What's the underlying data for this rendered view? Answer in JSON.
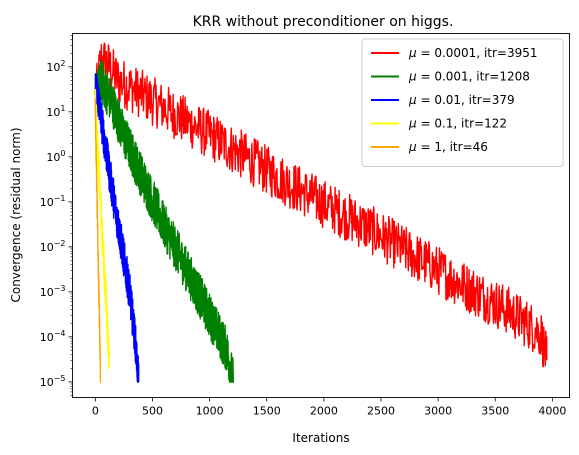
{
  "chart_data": {
    "type": "line",
    "title": "KRR without preconditioner on higgs.",
    "xlabel": "Iterations",
    "ylabel": "Convergence (residual norm)",
    "xlim": [
      -200,
      4150
    ],
    "ylim": [
      4.5e-06,
      550
    ],
    "yscale": "log",
    "grid": false,
    "legend_position": "top-right",
    "x_ticks": [
      0,
      500,
      1000,
      1500,
      2000,
      2500,
      3000,
      3500,
      4000
    ],
    "x_tick_labels": [
      "0",
      "500",
      "1000",
      "1500",
      "2000",
      "2500",
      "3000",
      "3500",
      "4000"
    ],
    "y_ticks": [
      1e-05,
      0.0001,
      0.001,
      0.01,
      0.1,
      1,
      10,
      100
    ],
    "y_tick_labels": [
      {
        "base": "10",
        "exp": "−5"
      },
      {
        "base": "10",
        "exp": "−4"
      },
      {
        "base": "10",
        "exp": "−3"
      },
      {
        "base": "10",
        "exp": "−2"
      },
      {
        "base": "10",
        "exp": "−1"
      },
      {
        "base": "10",
        "exp": "0"
      },
      {
        "base": "10",
        "exp": "1"
      },
      {
        "base": "10",
        "exp": "2"
      }
    ],
    "series": [
      {
        "name": "μ = 0.0001, itr=3951",
        "legend_mu": "μ",
        "legend_text": " = 0.0001, itr=3951",
        "color": "#ff0000",
        "x": [
          0,
          50,
          100,
          200,
          400,
          800,
          1200,
          1600,
          2000,
          2400,
          2800,
          3200,
          3600,
          3900,
          3951
        ],
        "y": [
          20,
          150,
          120,
          50,
          25,
          6,
          1.5,
          0.35,
          0.09,
          0.025,
          0.006,
          0.0015,
          0.0004,
          0.00012,
          3e-05
        ],
        "noise": 0.55
      },
      {
        "name": "μ = 0.001, itr=1208",
        "legend_mu": "μ",
        "legend_text": " = 0.001, itr=1208",
        "color": "#008000",
        "x": [
          0,
          50,
          150,
          250,
          400,
          600,
          800,
          1000,
          1150,
          1208
        ],
        "y": [
          20,
          50,
          15,
          3,
          0.4,
          0.03,
          0.003,
          0.0003,
          5e-05,
          1e-05
        ],
        "noise": 0.5
      },
      {
        "name": "μ = 0.01, itr=379",
        "legend_mu": "μ",
        "legend_text": " = 0.01, itr=379",
        "color": "#0000ff",
        "x": [
          0,
          20,
          60,
          120,
          200,
          300,
          350,
          379
        ],
        "y": [
          30,
          25,
          5,
          0.5,
          0.03,
          0.001,
          8e-05,
          1e-05
        ],
        "noise": 0.45
      },
      {
        "name": "μ = 0.1, itr=122",
        "legend_mu": "μ",
        "legend_text": " = 0.1, itr=122",
        "color": "#ffff00",
        "x": [
          0,
          10,
          30,
          60,
          90,
          122
        ],
        "y": [
          15,
          5,
          0.5,
          0.02,
          0.001,
          2e-05
        ],
        "noise": 0.4
      },
      {
        "name": "μ = 1, itr=46",
        "legend_mu": "μ",
        "legend_text": " = 1, itr=46",
        "color": "#ffa500",
        "x": [
          0,
          5,
          15,
          25,
          35,
          46
        ],
        "y": [
          12,
          2,
          0.1,
          0.005,
          0.0003,
          1e-05
        ],
        "noise": 0.3
      }
    ]
  }
}
